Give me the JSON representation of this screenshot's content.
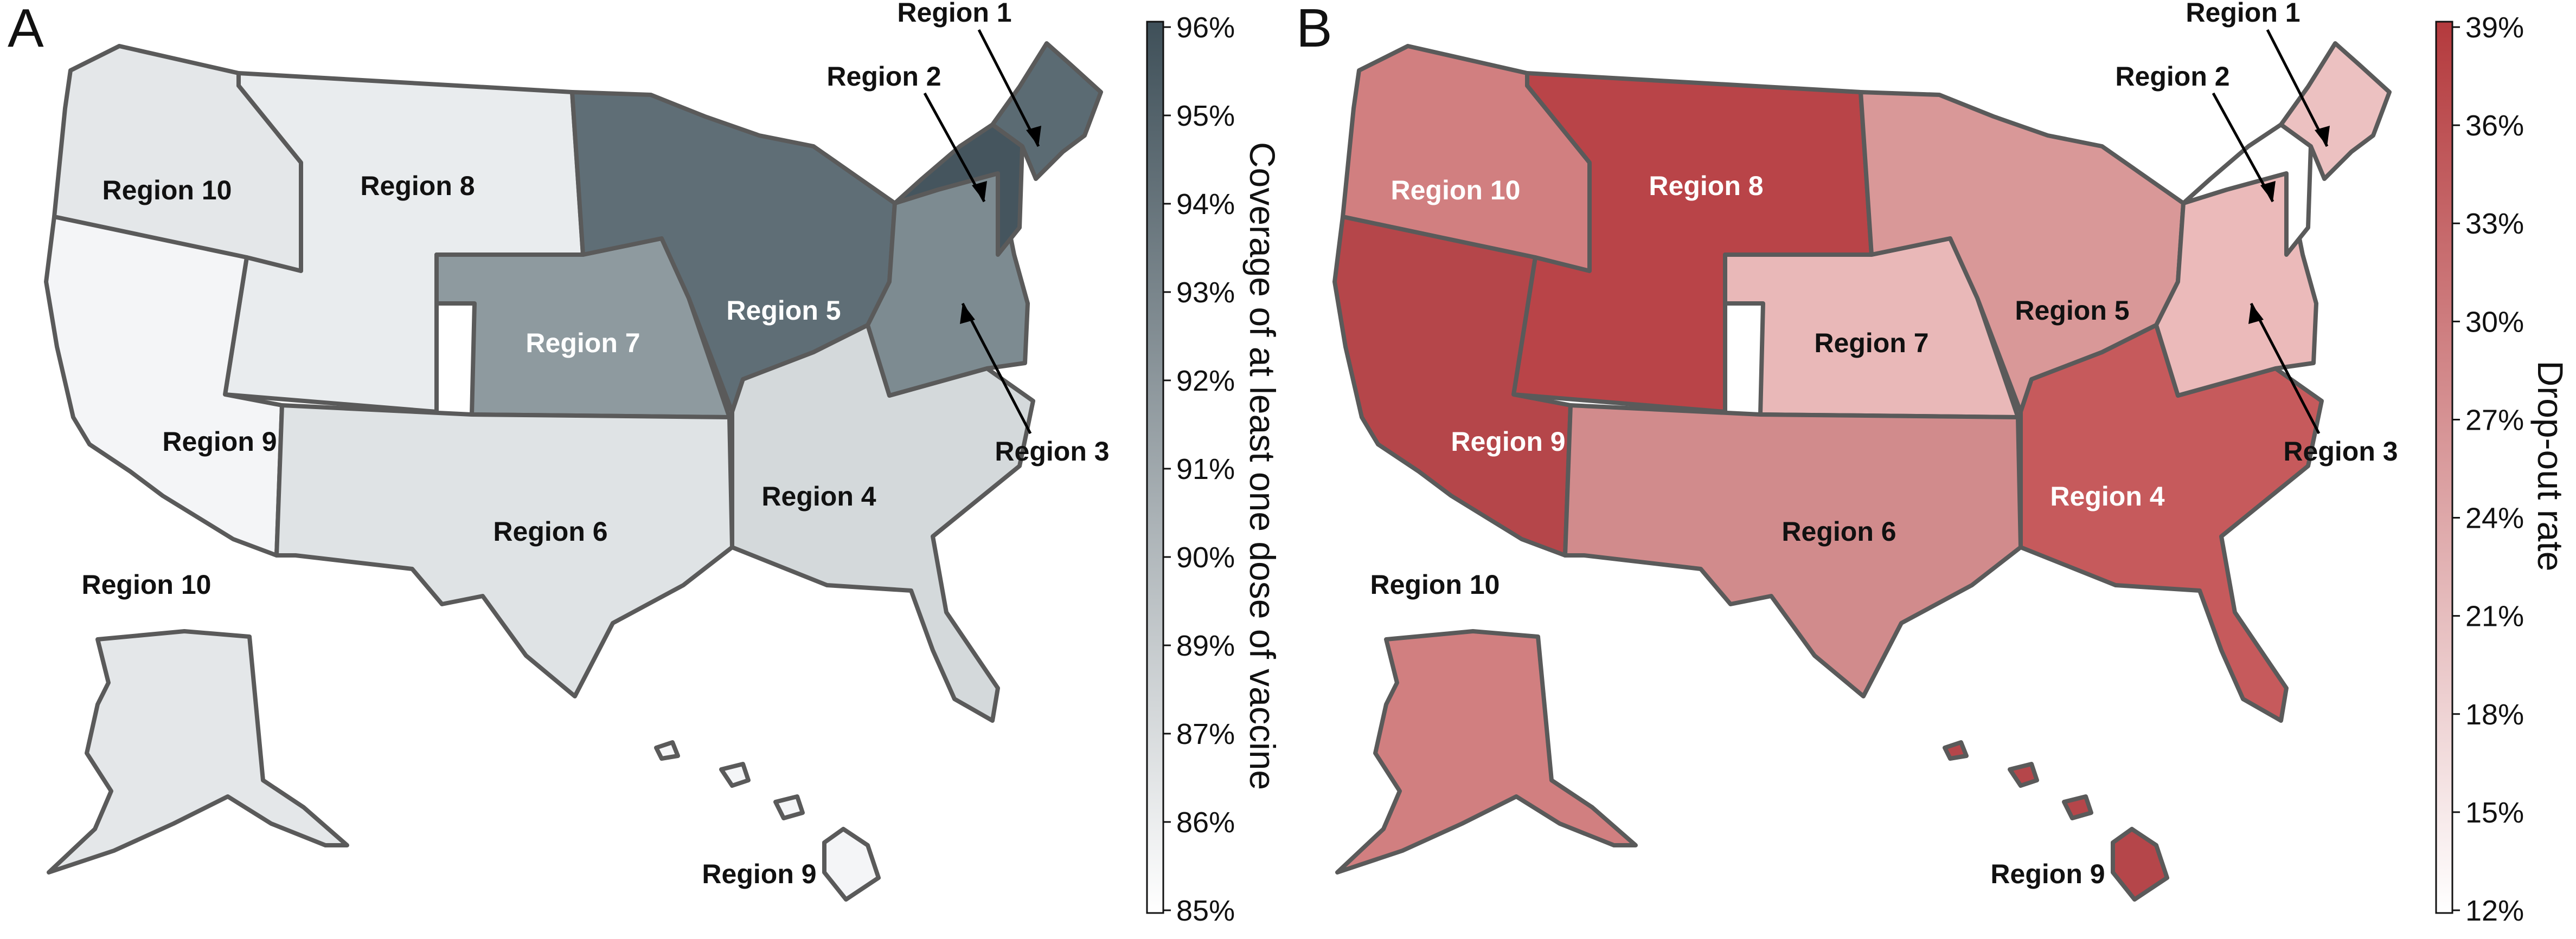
{
  "panels": {
    "a": {
      "letter": "A",
      "colorbar": {
        "title": "Coverage of at least one dose of vaccine",
        "ticks": [
          "96%",
          "95%",
          "94%",
          "93%",
          "92%",
          "91%",
          "90%",
          "89%",
          "87%",
          "86%",
          "85%"
        ],
        "color_low": "#ffffff",
        "color_high": "#3f5059"
      },
      "region_colors": {
        "r1": "#5b6b73",
        "r2": "#45555e",
        "r3": "#7d8b91",
        "r4": "#d4d9db",
        "r5": "#5f6e76",
        "r6": "#dfe3e5",
        "r7": "#8e9a9f",
        "r8": "#e9ecee",
        "r9": "#f4f5f7",
        "r10": "#e4e7e9",
        "r10ak": "#e4e7e9",
        "r9hi": "#f4f5f7"
      },
      "labels": {
        "r1": "Region 1",
        "r2": "Region 2",
        "r3": "Region 3",
        "r4": "Region 4",
        "r5": "Region 5",
        "r6": "Region 6",
        "r7": "Region 7",
        "r8": "Region 8",
        "r9": "Region 9",
        "r10": "Region 10",
        "r10ak": "Region 10",
        "r9hi": "Region 9"
      }
    },
    "b": {
      "letter": "B",
      "colorbar": {
        "title": "Drop-out rate",
        "ticks": [
          "39%",
          "36%",
          "33%",
          "30%",
          "27%",
          "24%",
          "21%",
          "18%",
          "15%",
          "12%"
        ],
        "color_low": "#ffffff",
        "color_high": "#b43a3d"
      },
      "region_colors": {
        "r1": "#ecc1c1",
        "r2": "#ffffff",
        "r3": "#ebbaba",
        "r4": "#c65a5c",
        "r5": "#d99898",
        "r6": "#d18b8c",
        "r7": "#e9b8b8",
        "r8": "#b94448",
        "r9": "#b5464a",
        "r10": "#d17f80",
        "r10ak": "#d17f80",
        "r9hi": "#b5464a"
      },
      "labels": {
        "r1": "Region 1",
        "r2": "Region 2",
        "r3": "Region 3",
        "r4": "Region 4",
        "r5": "Region 5",
        "r6": "Region 6",
        "r7": "Region 7",
        "r8": "Region 8",
        "r9": "Region 9",
        "r10": "Region 10",
        "r10ak": "Region 10",
        "r9hi": "Region 9"
      }
    }
  }
}
